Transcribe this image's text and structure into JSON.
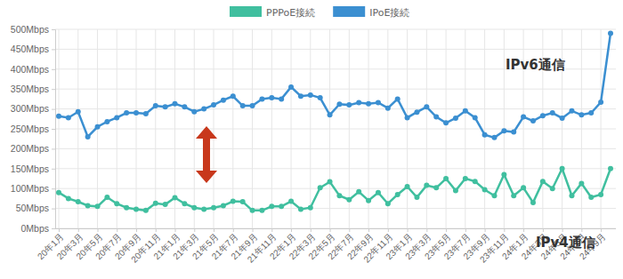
{
  "chart_data": {
    "type": "line",
    "categories": [
      "20年1月",
      null,
      "20年3月",
      null,
      "20年5月",
      null,
      "20年7月",
      null,
      "20年9月",
      null,
      "20年11月",
      null,
      "21年1月",
      null,
      "21年3月",
      null,
      "21年5月",
      null,
      "21年7月",
      null,
      "21年9月",
      null,
      "21年11月",
      null,
      "22年1月",
      null,
      "22年3月",
      null,
      "22年5月",
      null,
      "22年7月",
      null,
      "22年9月",
      null,
      "22年11月",
      null,
      "23年1月",
      null,
      "23年3月",
      null,
      "23年5月",
      null,
      "23年7月",
      null,
      "23年9月",
      null,
      "23年11月",
      null,
      "24年1月",
      null,
      "24年3月",
      null,
      "24年5月",
      null,
      "24年7月",
      null,
      "24年9月",
      null
    ],
    "series": [
      {
        "name": "PPPoE接続",
        "color": "#40bf9f",
        "values": [
          90,
          75,
          67,
          57,
          55,
          78,
          62,
          52,
          48,
          45,
          63,
          60,
          77,
          62,
          52,
          48,
          52,
          57,
          68,
          67,
          45,
          45,
          55,
          55,
          68,
          48,
          52,
          102,
          117,
          82,
          72,
          92,
          70,
          90,
          62,
          85,
          105,
          78,
          108,
          102,
          125,
          95,
          125,
          118,
          97,
          82,
          135,
          82,
          102,
          65,
          118,
          100,
          150,
          82,
          113,
          78,
          85,
          150
        ]
      },
      {
        "name": "IPoE接続",
        "color": "#3b8fd1",
        "values": [
          282,
          278,
          293,
          230,
          255,
          268,
          278,
          290,
          290,
          288,
          308,
          305,
          313,
          305,
          293,
          300,
          310,
          322,
          332,
          308,
          308,
          325,
          328,
          325,
          355,
          332,
          335,
          328,
          285,
          312,
          310,
          316,
          313,
          316,
          302,
          325,
          278,
          292,
          305,
          280,
          265,
          277,
          295,
          278,
          235,
          228,
          245,
          242,
          280,
          270,
          283,
          290,
          277,
          295,
          285,
          290,
          317,
          490
        ]
      }
    ],
    "ylim": [
      0,
      500
    ],
    "yticks": [
      {
        "value": 0,
        "label": "0Mbps"
      },
      {
        "value": 50,
        "label": "50Mbps"
      },
      {
        "value": 100,
        "label": "100Mbps"
      },
      {
        "value": 150,
        "label": "150Mbps"
      },
      {
        "value": 200,
        "label": "200Mbps"
      },
      {
        "value": 250,
        "label": "250Mbps"
      },
      {
        "value": 300,
        "label": "300Mbps"
      },
      {
        "value": 350,
        "label": "350Mbps"
      },
      {
        "value": 400,
        "label": "400Mbps"
      },
      {
        "value": 450,
        "label": "450Mbps"
      },
      {
        "value": 500,
        "label": "500Mbps"
      }
    ],
    "grid": true,
    "legend": "top",
    "marker": "circle",
    "annotations": [
      "IPv6通信",
      "IPv4通信"
    ]
  }
}
